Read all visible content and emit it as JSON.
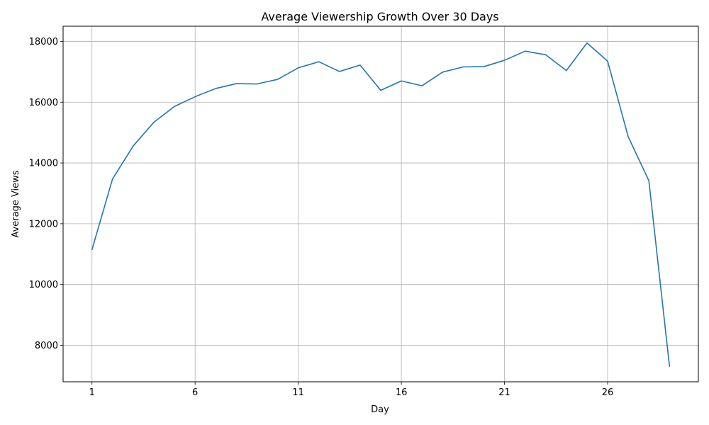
{
  "chart_data": {
    "type": "line",
    "title": "Average Viewership Growth Over 30 Days",
    "xlabel": "Day",
    "ylabel": "Average Views",
    "x_ticks": [
      1,
      6,
      11,
      16,
      21,
      26
    ],
    "y_ticks": [
      8000,
      10000,
      12000,
      14000,
      16000,
      18000
    ],
    "xlim": [
      -0.4,
      30.4
    ],
    "ylim": [
      6800,
      18500
    ],
    "grid": true,
    "series": [
      {
        "color": "#1f77b4",
        "x": [
          1,
          2,
          3,
          4,
          5,
          6,
          7,
          8,
          9,
          10,
          11,
          12,
          13,
          14,
          15,
          16,
          17,
          18,
          19,
          20,
          21,
          22,
          23,
          24,
          25,
          26,
          27,
          28,
          29
        ],
        "y": [
          11150,
          13480,
          14560,
          15340,
          15860,
          16180,
          16450,
          16610,
          16600,
          16750,
          17130,
          17330,
          17010,
          17220,
          16390,
          16700,
          16540,
          16990,
          17160,
          17170,
          17380,
          17680,
          17560,
          17040,
          17950,
          17350,
          14860,
          13420,
          7310
        ]
      }
    ]
  }
}
